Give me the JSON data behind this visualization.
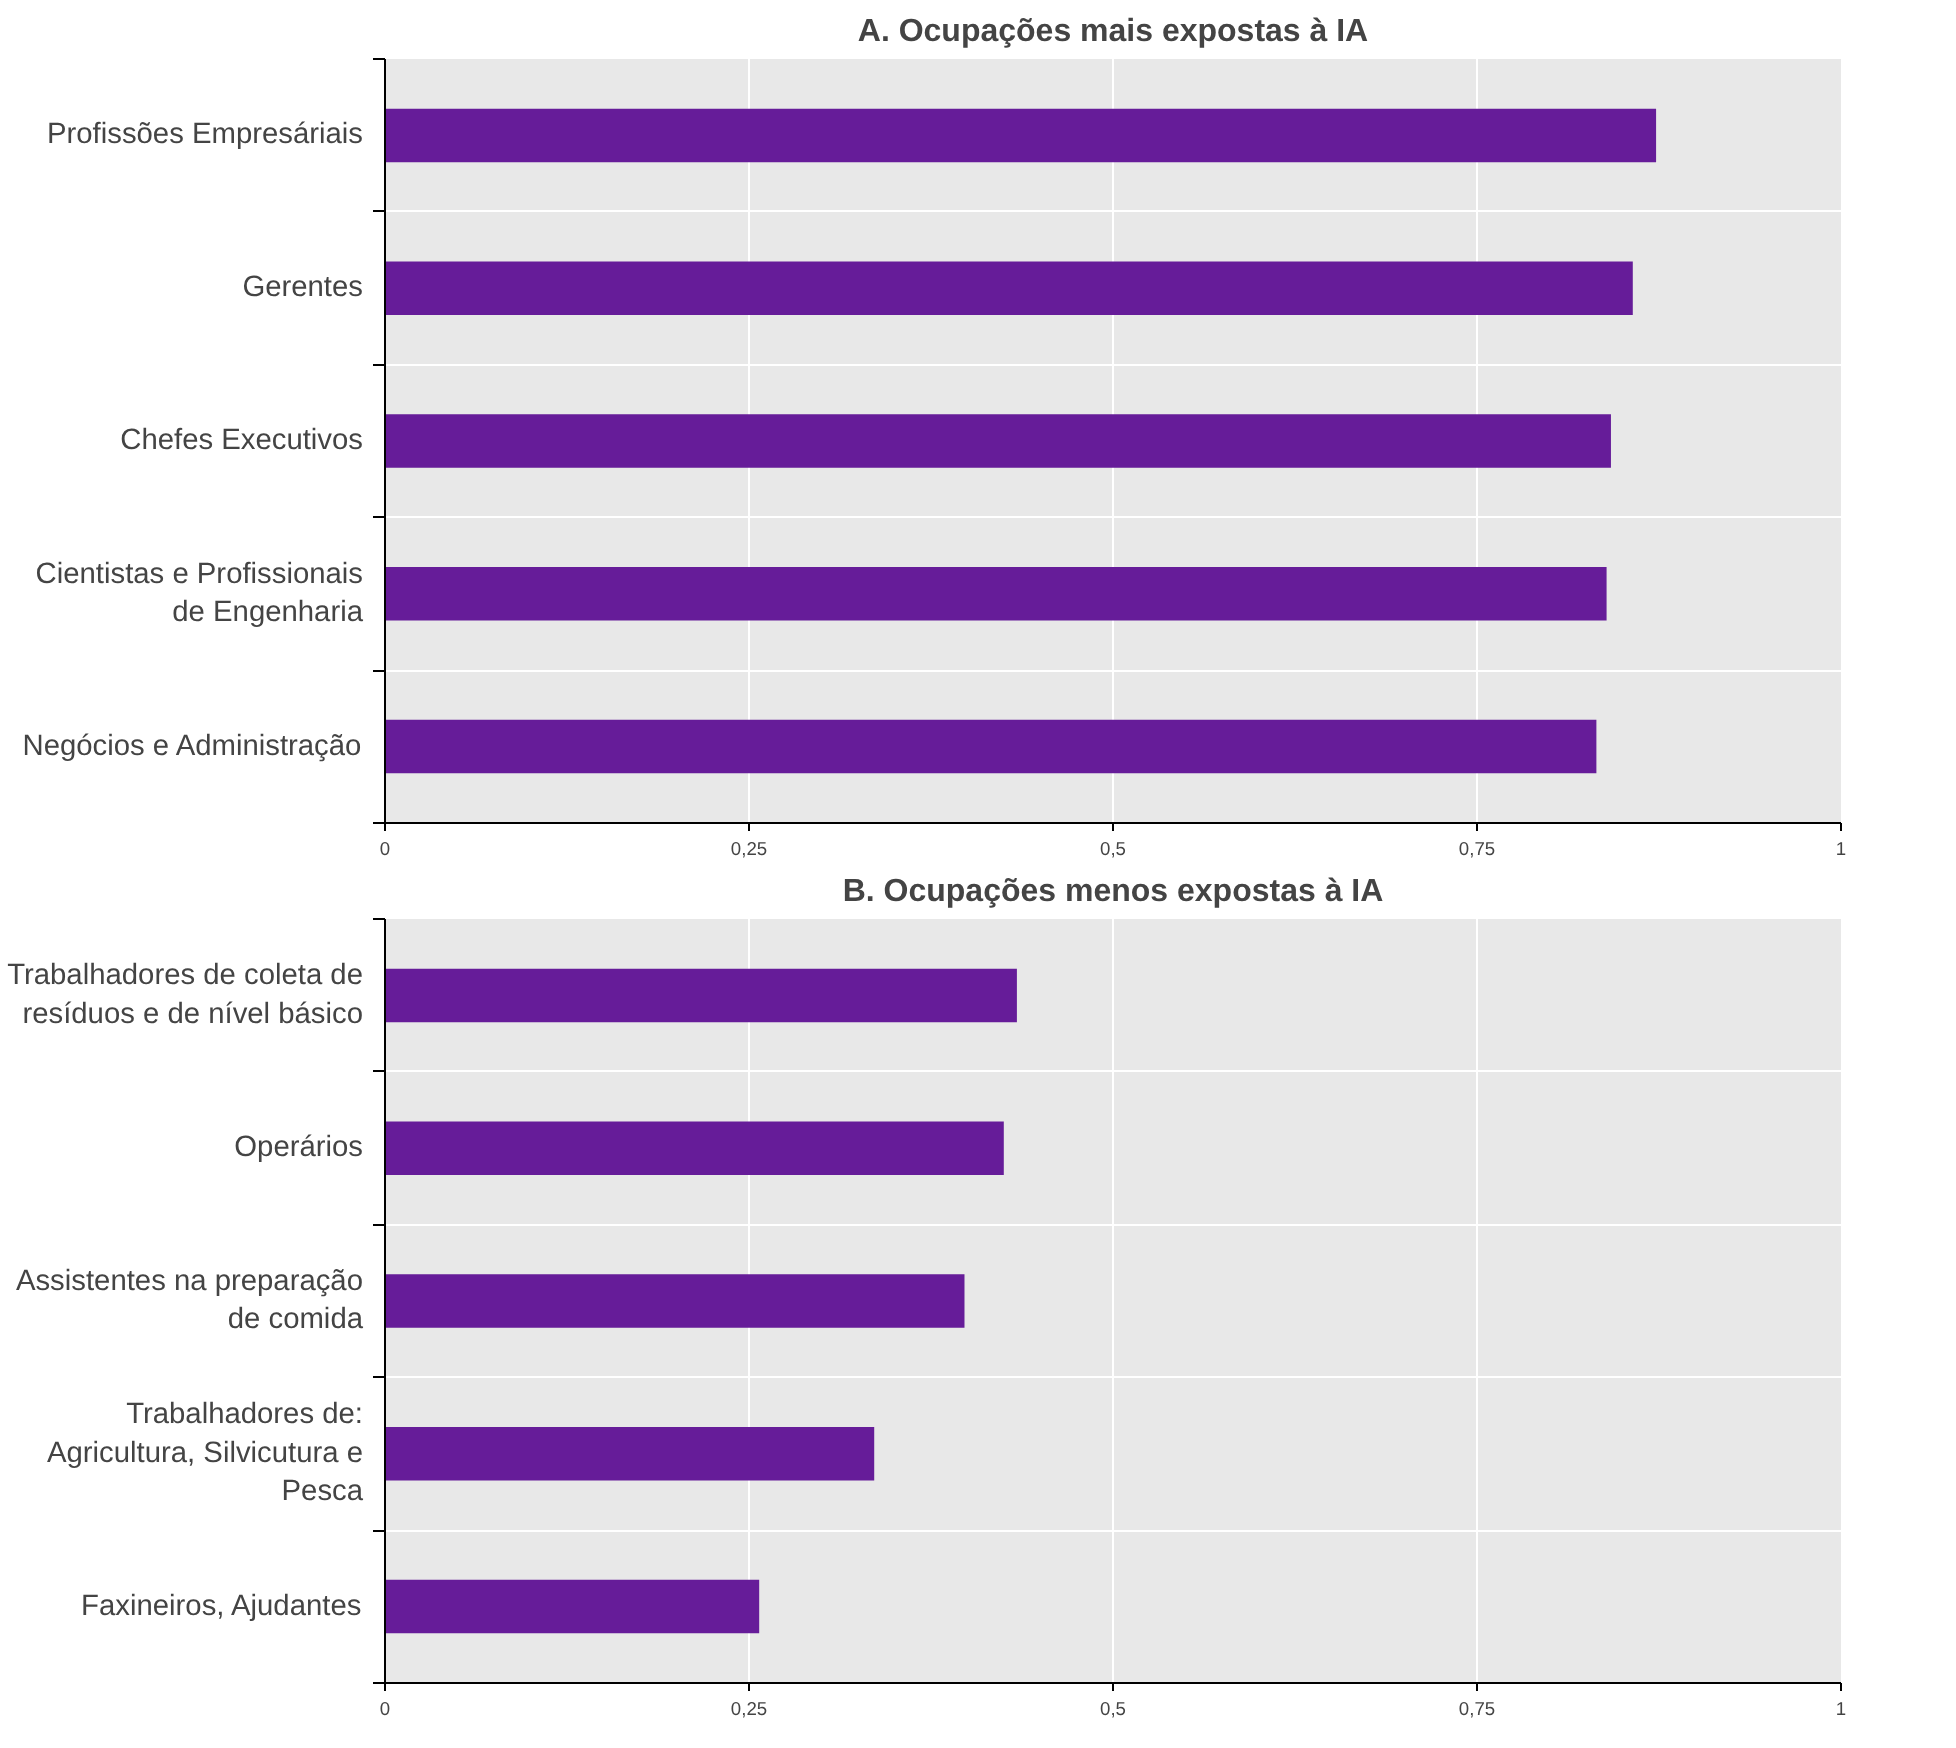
{
  "chart_data": [
    {
      "type": "bar",
      "orientation": "horizontal",
      "title": "A. Ocupações mais expostas à IA",
      "categories": [
        "Profissões Empresáriais",
        "Gerentes",
        "Chefes Executivos",
        "Cientistas e Profissionais\nde Engenharia",
        "Negócios e Administração"
      ],
      "values": [
        0.873,
        0.857,
        0.842,
        0.839,
        0.832
      ],
      "color": "#661c99",
      "xlim": [
        0,
        1
      ],
      "xticks": [
        0,
        {
          "value": 0.25,
          "label": "0,25"
        },
        {
          "value": 0.5,
          "label": "0,5"
        },
        {
          "value": 0.75,
          "label": "0,75"
        },
        1
      ],
      "grid": true
    },
    {
      "type": "bar",
      "orientation": "horizontal",
      "title": "B. Ocupações menos expostas à IA",
      "categories": [
        "Trabalhadores de coleta de\nresíduos e de nível básico",
        "Operários",
        "Assistentes na preparação\nde comida",
        "Trabalhadores de:\nAgricultura, Silvicutura e\nPesca",
        "Faxineiros, Ajudantes"
      ],
      "values": [
        0.434,
        0.425,
        0.398,
        0.336,
        0.257
      ],
      "color": "#661c99",
      "xlim": [
        0,
        1
      ],
      "xticks": [
        0,
        {
          "value": 0.25,
          "label": "0,25"
        },
        {
          "value": 0.5,
          "label": "0,5"
        },
        {
          "value": 0.75,
          "label": "0,75"
        },
        1
      ],
      "grid": true
    }
  ]
}
